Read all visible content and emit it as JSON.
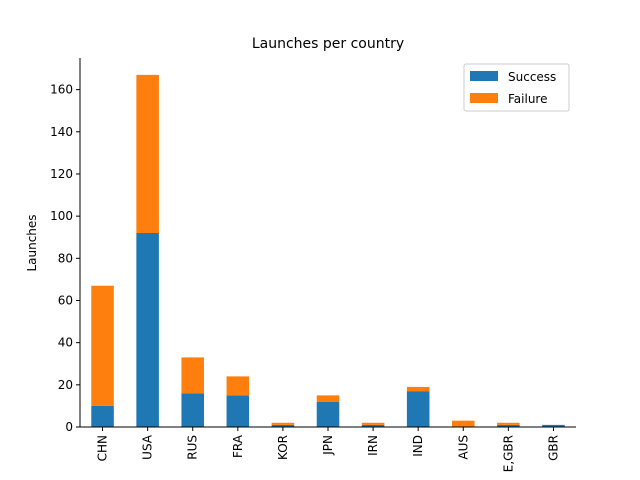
{
  "chart_data": {
    "type": "bar",
    "stacked": true,
    "title": "Launches per country",
    "xlabel": "",
    "ylabel": "Launches",
    "ylim": [
      0,
      175
    ],
    "yticks": [
      0,
      20,
      40,
      60,
      80,
      100,
      120,
      140,
      160
    ],
    "categories": [
      "CHN",
      "USA",
      "RUS",
      "FRA",
      "KOR",
      "JPN",
      "IRN",
      "IND",
      "AUS",
      "E,GBR",
      "GBR"
    ],
    "series": [
      {
        "name": "Success",
        "color": "#1f77b4",
        "values": [
          10,
          92,
          16,
          15,
          1,
          12,
          1,
          17,
          0,
          1,
          1
        ]
      },
      {
        "name": "Failure",
        "color": "#ff7f0e",
        "values": [
          57,
          75,
          17,
          9,
          1,
          3,
          1,
          2,
          3,
          1,
          0
        ]
      }
    ],
    "legend_position": "top-right",
    "grid": false
  }
}
